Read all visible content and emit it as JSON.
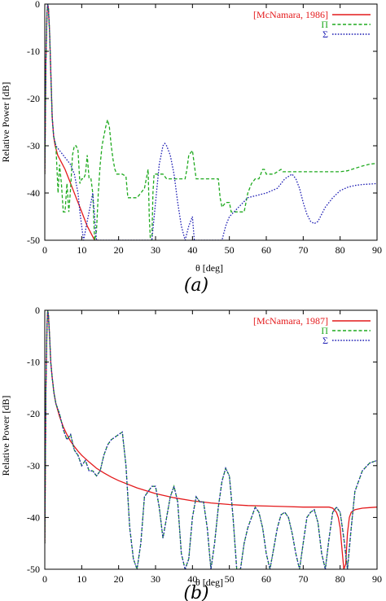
{
  "chart_data": [
    {
      "type": "line",
      "caption": "(a)",
      "xlabel": "θ [deg]",
      "ylabel": "Relative Power [dB]",
      "xlim": [
        0,
        90
      ],
      "ylim": [
        -50,
        0
      ],
      "xticks": [
        0,
        10,
        20,
        30,
        40,
        50,
        60,
        70,
        80,
        90
      ],
      "yticks": [
        0,
        -10,
        -20,
        -30,
        -40,
        -50
      ],
      "legend_position": "top-right",
      "grid": false,
      "series": [
        {
          "name": "[McNamara, 1986]",
          "color": "#e41a1c",
          "style": "solid",
          "x": [
            0,
            0.3,
            0.6,
            0.8,
            1.0,
            1.3,
            1.6,
            2.0,
            2.4,
            2.8,
            3.5,
            4.5,
            5.5,
            6.5,
            7.5,
            8.5,
            9.5,
            10.5,
            11.5,
            12.5,
            13.5,
            14.5
          ],
          "y": [
            -36,
            -12,
            -2,
            0,
            -1,
            -6,
            -14,
            -24,
            -28,
            -30,
            -32,
            -33.5,
            -35,
            -37,
            -39,
            -41,
            -43,
            -45,
            -47,
            -48.5,
            -50,
            -50
          ]
        },
        {
          "name": "Π",
          "color": "#1faa1f",
          "style": "dashed",
          "x": [
            0,
            0.3,
            0.6,
            0.8,
            1.0,
            1.3,
            1.6,
            2.0,
            2.4,
            3.0,
            3.3,
            3.6,
            4.0,
            4.5,
            5.0,
            5.5,
            6.0,
            6.5,
            7.0,
            7.5,
            8.0,
            8.5,
            9.0,
            9.5,
            10.0,
            10.5,
            11.0,
            11.5,
            12.0,
            12.5,
            13.0,
            13.5,
            14.0,
            14.5,
            15.0,
            15.5,
            16.0,
            16.5,
            17.0,
            17.5,
            18.0,
            18.5,
            19.0,
            19.5,
            20.0,
            21.0,
            22.0,
            22.5,
            23.0,
            25.0,
            26.0,
            27.0,
            28.0,
            28.3,
            28.6,
            29.0,
            29.3,
            29.6,
            30.0,
            31.0,
            32.0,
            33.0,
            34.0,
            36.0,
            37.0,
            38.0,
            38.5,
            39.0,
            40.0,
            40.5,
            41.0,
            42.0,
            43.0,
            45.0,
            46.0,
            47.0,
            47.5,
            48.0,
            49.0,
            50.0,
            50.5,
            51.0,
            52.0,
            54.0,
            55.0,
            56.0,
            57.0,
            58.0,
            59.0,
            59.5,
            60.0,
            61.0,
            62.0,
            63.0,
            64.0,
            64.5,
            65.0,
            70.0,
            75.0,
            80.0,
            82.0,
            84.0,
            86.0,
            88.0,
            90.0
          ],
          "y": [
            -36,
            -12,
            -2,
            0,
            -1,
            -6,
            -14,
            -24,
            -28,
            -30,
            -35,
            -40,
            -34,
            -38,
            -44,
            -44,
            -38,
            -44,
            -39,
            -32,
            -30,
            -30,
            -31,
            -38,
            -37,
            -37,
            -36,
            -32,
            -37,
            -37,
            -40,
            -50,
            -48,
            -40,
            -34,
            -30,
            -28,
            -26,
            -24.5,
            -26,
            -30,
            -33,
            -35,
            -36,
            -36,
            -36,
            -36.5,
            -41,
            -41,
            -41,
            -40,
            -39,
            -35,
            -45,
            -50,
            -50,
            -40,
            -36,
            -36,
            -36,
            -36,
            -37,
            -37,
            -37,
            -37,
            -37,
            -35,
            -32,
            -31,
            -34,
            -37,
            -37,
            -37,
            -37,
            -37,
            -37,
            -41,
            -43,
            -42,
            -42,
            -44,
            -44,
            -44,
            -44,
            -40,
            -38,
            -37,
            -37,
            -35,
            -35,
            -36,
            -36,
            -36,
            -35.5,
            -35,
            -35.5,
            -35.5,
            -35.5,
            -35.5,
            -35.5,
            -35.3,
            -34.8,
            -34.3,
            -33.9,
            -33.7
          ]
        },
        {
          "name": "Σ",
          "color": "#1f1fb4",
          "style": "dotted",
          "x": [
            0,
            0.3,
            0.6,
            0.8,
            1.0,
            1.3,
            1.6,
            2.0,
            2.4,
            3.0,
            4.0,
            5.0,
            6.0,
            7.0,
            8.0,
            9.0,
            9.5,
            10.0,
            10.5,
            11.0,
            11.5,
            12.0,
            12.5,
            13.0,
            13.5,
            14.0,
            14.5,
            15.0,
            20.0,
            25.0,
            28.0,
            29.0,
            30.0,
            31.0,
            32.0,
            32.5,
            33.0,
            34.0,
            35.0,
            36.0,
            37.0,
            38.0,
            39.0,
            40.0,
            40.5,
            42.0,
            45.0,
            48.0,
            49.0,
            50.0,
            55.0,
            60.0,
            63.0,
            65.0,
            67.0,
            68.0,
            69.0,
            70.0,
            71.0,
            72.0,
            73.0,
            74.0,
            75.0,
            76.0,
            78.0,
            80.0,
            82.0,
            84.0,
            86.0,
            88.0,
            90.0
          ],
          "y": [
            -36,
            -12,
            -2,
            0,
            -1,
            -6,
            -14,
            -24,
            -28,
            -30,
            -31,
            -32,
            -33,
            -34,
            -36,
            -40,
            -44,
            -47,
            -50,
            -48,
            -46,
            -44,
            -42,
            -40,
            -45,
            -50,
            -50,
            -50,
            -50,
            -50,
            -50,
            -50,
            -42,
            -34,
            -30,
            -29.5,
            -30,
            -32,
            -36,
            -42,
            -47,
            -50,
            -47,
            -45,
            -50,
            -50,
            -50,
            -50,
            -47,
            -45,
            -41,
            -40,
            -39,
            -37,
            -36,
            -37,
            -39,
            -42,
            -44.5,
            -46,
            -46.5,
            -46,
            -44.5,
            -43,
            -41,
            -39.5,
            -38.8,
            -38.4,
            -38.2,
            -38.1,
            -38
          ]
        }
      ]
    },
    {
      "type": "line",
      "caption": "(b)",
      "xlabel": "θ [deg]",
      "ylabel": "Relative Power [dB]",
      "xlim": [
        0,
        90
      ],
      "ylim": [
        -50,
        0
      ],
      "xticks": [
        0,
        10,
        20,
        30,
        40,
        50,
        60,
        70,
        80,
        90
      ],
      "yticks": [
        0,
        -10,
        -20,
        -30,
        -40,
        -50
      ],
      "legend_position": "top-right",
      "grid": false,
      "series": [
        {
          "name": "[McNamara, 1987]",
          "color": "#e41a1c",
          "style": "solid",
          "x": [
            0,
            0.3,
            0.6,
            0.8,
            1.0,
            1.3,
            1.6,
            2.0,
            2.5,
            3.0,
            4.0,
            5.0,
            6.0,
            7.0,
            8.0,
            9.0,
            10.0,
            12.0,
            14.0,
            16.0,
            18.0,
            20.0,
            25.0,
            30.0,
            35.0,
            40.0,
            45.0,
            50.0,
            55.0,
            60.0,
            65.0,
            70.0,
            75.0,
            77.0,
            78.0,
            79.0,
            79.5,
            80.0,
            80.5,
            81.0,
            81.5,
            82.0,
            82.5,
            83.0,
            84.0,
            86.0,
            88.0,
            90.0
          ],
          "y": [
            -45,
            -15,
            -3,
            0,
            -1,
            -5,
            -10,
            -13,
            -16,
            -18,
            -20.5,
            -22.5,
            -24,
            -25.3,
            -26.3,
            -27.2,
            -28,
            -29.3,
            -30.5,
            -31.4,
            -32.2,
            -32.9,
            -34.3,
            -35.4,
            -36.2,
            -36.8,
            -37.2,
            -37.5,
            -37.7,
            -37.8,
            -37.9,
            -38,
            -38,
            -38,
            -38.2,
            -39,
            -40,
            -42,
            -46,
            -50,
            -49,
            -43,
            -40,
            -39,
            -38.5,
            -38.2,
            -38.1,
            -38
          ]
        },
        {
          "name": "Π",
          "color": "#1faa1f",
          "style": "dashed",
          "x": [
            0,
            0.3,
            0.6,
            0.8,
            1.0,
            1.3,
            1.6,
            2.0,
            2.5,
            3.0,
            4.0,
            5.0,
            6.0,
            7.0,
            8.0,
            9.0,
            10.0,
            11.0,
            12.0,
            13.0,
            14.0,
            15.0,
            16.0,
            17.0,
            18.0,
            19.0,
            20.0,
            21.0,
            22.0,
            23.0,
            24.0,
            25.0,
            26.0,
            27.0,
            28.0,
            29.0,
            30.0,
            31.0,
            32.0,
            33.0,
            34.0,
            35.0,
            36.0,
            37.0,
            38.0,
            39.0,
            40.0,
            41.0,
            42.0,
            43.0,
            44.0,
            45.0,
            46.0,
            47.0,
            48.0,
            49.0,
            50.0,
            51.0,
            52.0,
            53.0,
            54.0,
            55.0,
            56.0,
            57.0,
            58.0,
            59.0,
            60.0,
            61.0,
            62.0,
            63.0,
            64.0,
            65.0,
            66.0,
            67.0,
            68.0,
            69.0,
            70.0,
            71.0,
            72.0,
            73.0,
            74.0,
            75.0,
            76.0,
            77.0,
            78.0,
            79.0,
            80.0,
            81.0,
            82.0,
            83.0,
            84.0,
            86.0,
            88.0,
            90.0
          ],
          "y": [
            -45,
            -15,
            -3,
            0,
            -1,
            -5,
            -10,
            -13,
            -16,
            -18,
            -20,
            -23,
            -25,
            -24,
            -27,
            -28,
            -30,
            -29,
            -31,
            -31,
            -32,
            -31,
            -28,
            -26,
            -25,
            -24.5,
            -24,
            -23.5,
            -30,
            -42,
            -48,
            -50,
            -45,
            -36,
            -35,
            -34,
            -34,
            -38,
            -44,
            -40,
            -36,
            -34,
            -37,
            -47,
            -50,
            -48,
            -40,
            -36,
            -37,
            -37,
            -42,
            -50,
            -45,
            -38,
            -33,
            -30.5,
            -32,
            -40,
            -50,
            -50,
            -45,
            -42,
            -40,
            -38,
            -39,
            -42,
            -47,
            -50,
            -46,
            -42,
            -39.5,
            -39,
            -40,
            -43,
            -47,
            -50,
            -45,
            -40,
            -39,
            -38.5,
            -41,
            -47,
            -50,
            -44,
            -39,
            -38,
            -39,
            -44,
            -50,
            -42,
            -35,
            -31,
            -29.5,
            -29
          ]
        },
        {
          "name": "Σ",
          "color": "#1f1fb4",
          "style": "dotted",
          "x": [
            0,
            0.3,
            0.6,
            0.8,
            1.0,
            1.3,
            1.6,
            2.0,
            2.5,
            3.0,
            4.0,
            5.0,
            6.0,
            7.0,
            8.0,
            9.0,
            10.0,
            11.0,
            12.0,
            13.0,
            14.0,
            15.0,
            16.0,
            17.0,
            18.0,
            19.0,
            20.0,
            21.0,
            22.0,
            23.0,
            24.0,
            25.0,
            26.0,
            27.0,
            28.0,
            29.0,
            30.0,
            31.0,
            32.0,
            33.0,
            34.0,
            35.0,
            36.0,
            37.0,
            38.0,
            39.0,
            40.0,
            41.0,
            42.0,
            43.0,
            44.0,
            45.0,
            46.0,
            47.0,
            48.0,
            49.0,
            50.0,
            51.0,
            52.0,
            53.0,
            54.0,
            55.0,
            56.0,
            57.0,
            58.0,
            59.0,
            60.0,
            61.0,
            62.0,
            63.0,
            64.0,
            65.0,
            66.0,
            67.0,
            68.0,
            69.0,
            70.0,
            71.0,
            72.0,
            73.0,
            74.0,
            75.0,
            76.0,
            77.0,
            78.0,
            79.0,
            80.0,
            81.0,
            82.0,
            83.0,
            84.0,
            86.0,
            88.0,
            90.0
          ],
          "y": [
            -45,
            -15,
            -3,
            0,
            -1,
            -5,
            -10,
            -13,
            -16,
            -18,
            -20,
            -23,
            -25,
            -24,
            -27,
            -28,
            -30,
            -29,
            -31,
            -31,
            -32,
            -31,
            -28,
            -26,
            -25,
            -24.5,
            -24,
            -23.5,
            -30,
            -42,
            -48,
            -50,
            -45,
            -36,
            -35,
            -34,
            -34,
            -38,
            -44,
            -40,
            -36,
            -34,
            -37,
            -47,
            -50,
            -48,
            -40,
            -36,
            -37,
            -37,
            -42,
            -50,
            -45,
            -38,
            -33,
            -30.5,
            -32,
            -40,
            -50,
            -50,
            -45,
            -42,
            -40,
            -38,
            -39,
            -42,
            -47,
            -50,
            -46,
            -42,
            -39.5,
            -39,
            -40,
            -43,
            -47,
            -50,
            -45,
            -40,
            -39,
            -38.5,
            -41,
            -47,
            -50,
            -44,
            -39,
            -38,
            -39,
            -44,
            -50,
            -42,
            -35,
            -31,
            -29.5,
            -29
          ]
        }
      ]
    }
  ]
}
